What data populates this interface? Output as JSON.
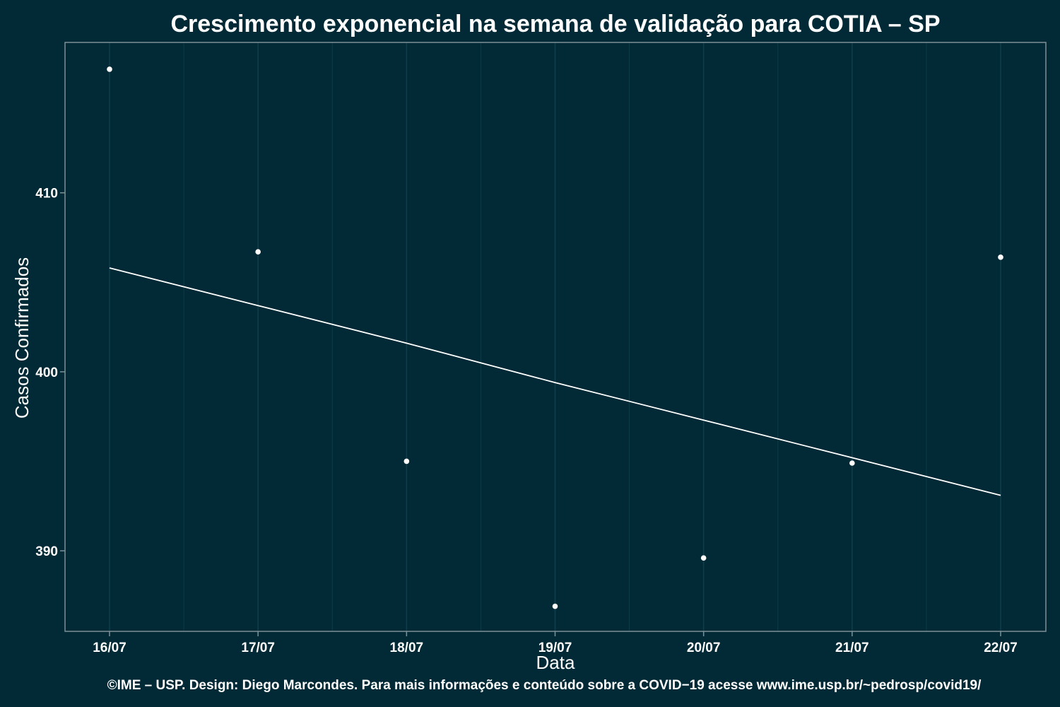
{
  "chart_data": {
    "type": "scatter",
    "title": "Crescimento exponencial na semana de validação para COTIA – SP",
    "xlabel": "Data",
    "ylabel": "Casos Confirmados",
    "caption": "©IME – USP. Design: Diego Marcondes. Para mais informações e conteúdo sobre a COVID−19 acesse www.ime.usp.br/~pedrosp/covid19/",
    "categories": [
      "16/07",
      "17/07",
      "18/07",
      "19/07",
      "20/07",
      "21/07",
      "22/07"
    ],
    "series": [
      {
        "type": "scatter",
        "values": [
          416.9,
          406.7,
          395.0,
          386.9,
          389.6,
          394.9,
          406.4
        ]
      },
      {
        "type": "line",
        "values": [
          405.8,
          403.7,
          401.6,
          399.4,
          397.3,
          395.2,
          393.1
        ]
      }
    ],
    "y_ticks": [
      390,
      400,
      410
    ],
    "ylim": [
      385.5,
      418.4
    ],
    "grid": true,
    "colors": {
      "background": "#012a36",
      "grid": "#0f3d4a",
      "axis": "#7f9096",
      "points": "#ffffff",
      "line": "#ffffff"
    }
  }
}
